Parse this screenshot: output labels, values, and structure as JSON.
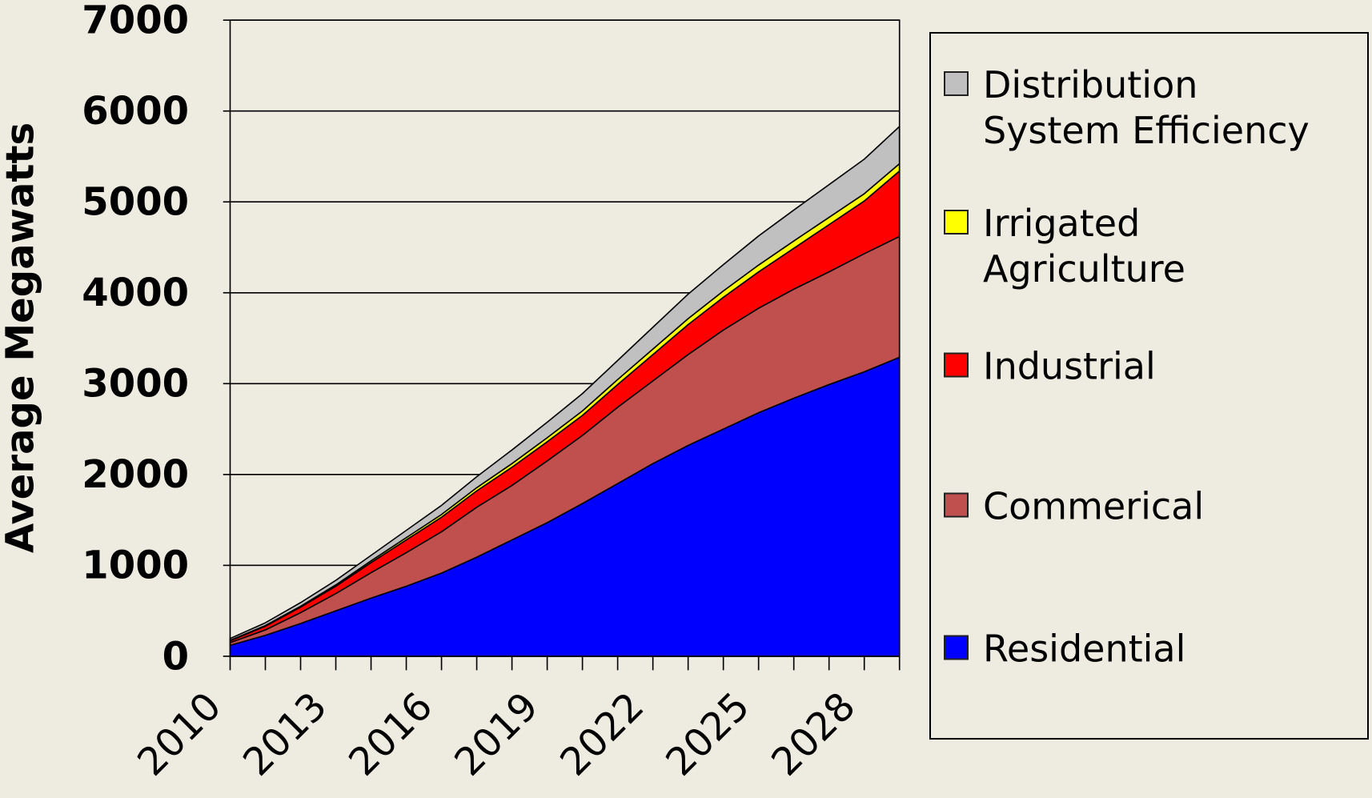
{
  "chart_data": {
    "type": "stacked-area",
    "y_label": "Average Megawatts",
    "categories": [
      "2010",
      null,
      null,
      "2013",
      null,
      null,
      "2016",
      null,
      null,
      "2019",
      null,
      null,
      "2022",
      null,
      null,
      "2025",
      null,
      null,
      "2028",
      null
    ],
    "series": [
      {
        "name": "Residential",
        "color": "#0000ff",
        "values": [
          120,
          230,
          360,
          500,
          640,
          770,
          915,
          1090,
          1280,
          1470,
          1680,
          1900,
          2120,
          2320,
          2500,
          2680,
          2840,
          2990,
          3130,
          3290
        ]
      },
      {
        "name": "Commerical",
        "color": "#c0504d",
        "values": [
          30,
          60,
          120,
          190,
          280,
          370,
          455,
          550,
          600,
          680,
          750,
          840,
          910,
          1000,
          1090,
          1150,
          1200,
          1240,
          1300,
          1330
        ]
      },
      {
        "name": "Industrial",
        "color": "#ff0000",
        "values": [
          20,
          40,
          60,
          80,
          110,
          140,
          160,
          180,
          200,
          210,
          220,
          250,
          290,
          330,
          360,
          400,
          450,
          520,
          580,
          720
        ]
      },
      {
        "name": "Irrigated Agriculture",
        "color": "#ffff00",
        "values": [
          5,
          8,
          10,
          15,
          20,
          25,
          30,
          35,
          40,
          45,
          50,
          55,
          60,
          65,
          70,
          75,
          80,
          80,
          80,
          80
        ]
      },
      {
        "name": "Distribution System Efficiency",
        "color": "#c0c0c0",
        "values": [
          20,
          30,
          40,
          50,
          60,
          80,
          100,
          120,
          150,
          170,
          190,
          210,
          240,
          270,
          290,
          320,
          340,
          360,
          380,
          410
        ]
      }
    ],
    "ylim": [
      0,
      7000
    ],
    "yticks": [
      0,
      1000,
      2000,
      3000,
      4000,
      5000,
      6000,
      7000
    ],
    "grid": true
  }
}
